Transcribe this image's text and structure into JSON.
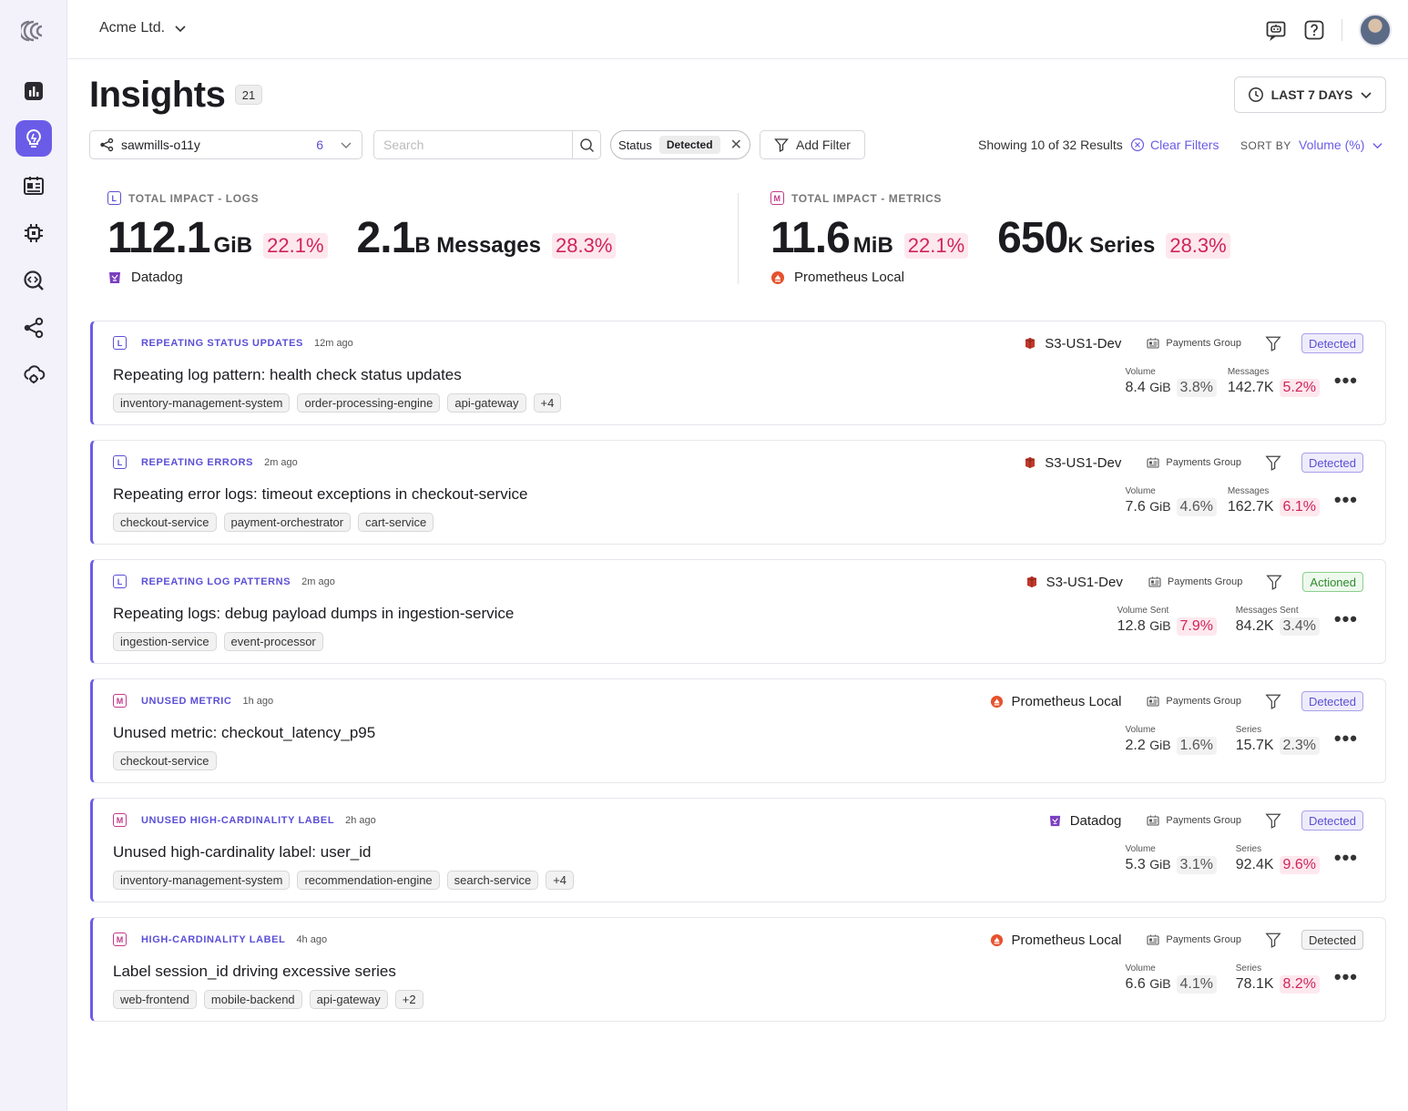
{
  "org": {
    "name": "Acme Ltd."
  },
  "header": {
    "title": "Insights",
    "count": "21",
    "range_label": "LAST 7 DAYS"
  },
  "filters": {
    "scope_name": "sawmills-o11y",
    "scope_count": "6",
    "search_placeholder": "Search",
    "status_label": "Status",
    "status_value": "Detected",
    "add_filter_label": "Add Filter",
    "results_text": "Showing 10 of 32 Results",
    "clear_label": "Clear Filters",
    "sort_label": "SORT BY",
    "sort_value": "Volume (%)"
  },
  "summary": {
    "logs": {
      "label": "TOTAL IMPACT - LOGS",
      "type_letter": "L",
      "volume_value": "112.1",
      "volume_unit": "GiB",
      "volume_pct": "22.1%",
      "messages_value": "2.1",
      "messages_unit": "B Messages",
      "messages_pct": "28.3%",
      "source": "Datadog"
    },
    "metrics": {
      "label": "TOTAL IMPACT - METRICS",
      "type_letter": "M",
      "volume_value": "11.6",
      "volume_unit": "MiB",
      "volume_pct": "22.1%",
      "series_value": "650",
      "series_unit": "K Series",
      "series_pct": "28.3%",
      "source": "Prometheus Local"
    }
  },
  "colors": {
    "accent": "#6b5ce7",
    "pink": "#d1245c",
    "green": "#2e8a2e"
  },
  "insights": [
    {
      "type_letter": "L",
      "type_label": "REPEATING STATUS UPDATES",
      "time": "12m ago",
      "title": "Repeating log pattern: health check status updates",
      "tags": [
        "inventory-management-system",
        "order-processing-engine",
        "api-gateway",
        "+4"
      ],
      "source": "S3-US1-Dev",
      "source_icon": "s3-icon",
      "group": "Payments Group",
      "status": "Detected",
      "m1_label": "Volume",
      "m1_value": "8.4",
      "m1_unit": "GiB",
      "m1_pct": "3.8%",
      "m2_label": "Messages",
      "m2_value": "142.7K",
      "m2_pct": "5.2%"
    },
    {
      "type_letter": "L",
      "type_label": "REPEATING ERRORS",
      "time": "2m ago",
      "title": "Repeating error logs: timeout exceptions in checkout-service",
      "tags": [
        "checkout-service",
        "payment-orchestrator",
        "cart-service"
      ],
      "source": "S3-US1-Dev",
      "source_icon": "s3-icon",
      "group": "Payments Group",
      "status": "Detected",
      "m1_label": "Volume",
      "m1_value": "7.6",
      "m1_unit": "GiB",
      "m1_pct": "4.6%",
      "m2_label": "Messages",
      "m2_value": "162.7K",
      "m2_pct": "6.1%"
    },
    {
      "type_letter": "L",
      "type_label": "REPEATING LOG PATTERNS",
      "time": "2m ago",
      "title": "Repeating logs: debug payload dumps in ingestion-service",
      "tags": [
        "ingestion-service",
        "event-processor"
      ],
      "source": "S3-US1-Dev",
      "source_icon": "s3-icon",
      "group": "Payments Group",
      "status": "Actioned",
      "m1_label": "Volume Sent",
      "m1_value": "12.8",
      "m1_unit": "GiB",
      "m1_pct": "7.9%",
      "m2_label": "Messages Sent",
      "m2_value": "84.2K",
      "m2_pct": "3.4%"
    },
    {
      "type_letter": "M",
      "type_label": "UNUSED METRIC",
      "time": "1h ago",
      "title": "Unused metric: checkout_latency_p95",
      "tags": [
        "checkout-service"
      ],
      "source": "Prometheus Local",
      "source_icon": "prometheus-icon",
      "group": "Payments Group",
      "status": "Detected",
      "m1_label": "Volume",
      "m1_value": "2.2",
      "m1_unit": "GiB",
      "m1_pct": "1.6%",
      "m2_label": "Series",
      "m2_value": "15.7K",
      "m2_pct": "2.3%"
    },
    {
      "type_letter": "M",
      "type_label": "UNUSED HIGH-CARDINALITY LABEL",
      "time": "2h ago",
      "title": "Unused high-cardinality label: user_id",
      "tags": [
        "inventory-management-system",
        "recommendation-engine",
        "search-service",
        "+4"
      ],
      "source": "Datadog",
      "source_icon": "datadog-icon",
      "group": "Payments Group",
      "status": "Detected",
      "m1_label": "Volume",
      "m1_value": "5.3",
      "m1_unit": "GiB",
      "m1_pct": "3.1%",
      "m2_label": "Series",
      "m2_value": "92.4K",
      "m2_pct": "9.6%"
    },
    {
      "type_letter": "M",
      "type_label": "HIGH-CARDINALITY LABEL",
      "time": "4h ago",
      "title": "Label session_id driving excessive series",
      "tags": [
        "web-frontend",
        "mobile-backend",
        "api-gateway",
        "+2"
      ],
      "source": "Prometheus Local",
      "source_icon": "prometheus-icon",
      "group": "Payments Group",
      "status": "Detected",
      "m1_label": "Volume",
      "m1_value": "6.6",
      "m1_unit": "GiB",
      "m1_pct": "4.1%",
      "m2_label": "Series",
      "m2_value": "78.1K",
      "m2_pct": "8.2%"
    }
  ]
}
